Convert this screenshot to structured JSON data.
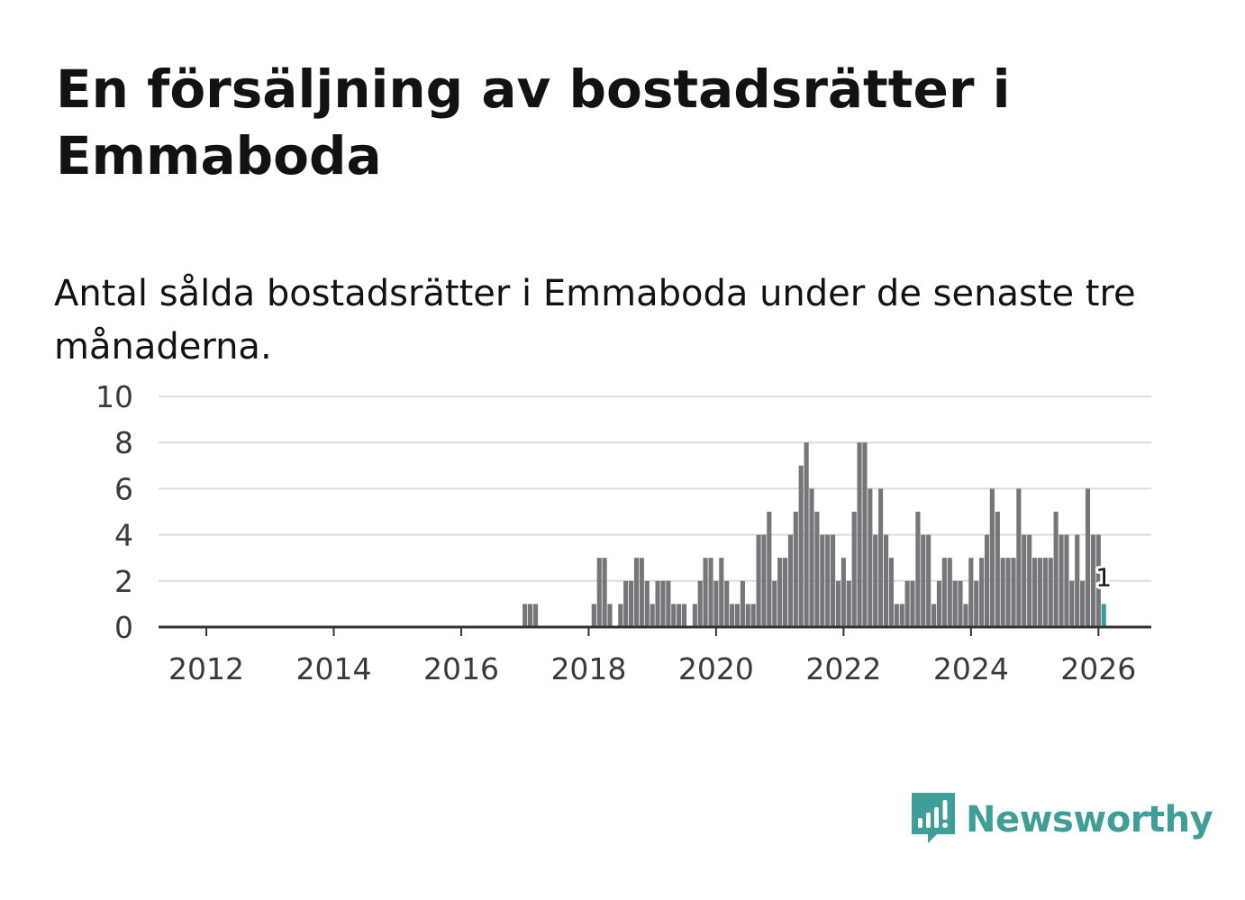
{
  "header": {
    "title": "En försäljning av bostadsrätter i Emmaboda",
    "subtitle": "Antal sålda bostadsrätter i Emmaboda under de senaste tre månaderna."
  },
  "branding": {
    "name": "Newsworthy",
    "icon": "newsworthy-logo-icon"
  },
  "colors": {
    "bar": "#75757a",
    "highlight": "#3a9c96",
    "grid": "#dcdcdc",
    "axis": "#333333",
    "brand": "#3f9e97"
  },
  "chart_data": {
    "type": "bar",
    "title": "En försäljning av bostadsrätter i Emmaboda",
    "subtitle": "Antal sålda bostadsrätter i Emmaboda under de senaste tre månaderna.",
    "xlabel": "",
    "ylabel": "",
    "x_range": [
      2011.25,
      2026.83
    ],
    "ylim": [
      0,
      10
    ],
    "y_ticks": [
      0,
      2,
      4,
      6,
      8,
      10
    ],
    "x_ticks": [
      2012,
      2014,
      2016,
      2018,
      2020,
      2022,
      2024,
      2026
    ],
    "grid": true,
    "bar_width_years": 0.0725,
    "series": [
      {
        "name": "Sålda bostadsrätter",
        "x": [
          2017.0,
          2017.083,
          2017.167,
          2018.083,
          2018.167,
          2018.25,
          2018.333,
          2018.5,
          2018.583,
          2018.667,
          2018.75,
          2018.833,
          2018.917,
          2019.0,
          2019.083,
          2019.167,
          2019.25,
          2019.333,
          2019.417,
          2019.5,
          2019.667,
          2019.75,
          2019.833,
          2019.917,
          2020.0,
          2020.083,
          2020.167,
          2020.25,
          2020.333,
          2020.417,
          2020.5,
          2020.583,
          2020.667,
          2020.75,
          2020.833,
          2020.917,
          2021.0,
          2021.083,
          2021.167,
          2021.25,
          2021.333,
          2021.417,
          2021.5,
          2021.583,
          2021.667,
          2021.75,
          2021.833,
          2021.917,
          2022.0,
          2022.083,
          2022.167,
          2022.25,
          2022.333,
          2022.417,
          2022.5,
          2022.583,
          2022.667,
          2022.75,
          2022.833,
          2022.917,
          2023.0,
          2023.083,
          2023.167,
          2023.25,
          2023.333,
          2023.417,
          2023.5,
          2023.583,
          2023.667,
          2023.75,
          2023.833,
          2023.917,
          2024.0,
          2024.083,
          2024.167,
          2024.25,
          2024.333,
          2024.417,
          2024.5,
          2024.583,
          2024.667,
          2024.75,
          2024.833,
          2024.917,
          2025.0,
          2025.083,
          2025.167,
          2025.25,
          2025.333,
          2025.417,
          2025.5,
          2025.583,
          2025.667,
          2025.75,
          2025.833,
          2025.917,
          2026.0
        ],
        "values": [
          1,
          1,
          1,
          1,
          3,
          3,
          1,
          1,
          2,
          2,
          3,
          3,
          2,
          1,
          2,
          2,
          2,
          1,
          1,
          1,
          1,
          2,
          3,
          3,
          2,
          3,
          2,
          1,
          1,
          2,
          1,
          1,
          4,
          4,
          5,
          2,
          3,
          3,
          4,
          5,
          7,
          8,
          6,
          5,
          4,
          4,
          4,
          2,
          3,
          2,
          5,
          8,
          8,
          6,
          4,
          6,
          4,
          3,
          1,
          1,
          2,
          2,
          5,
          4,
          4,
          1,
          2,
          3,
          3,
          2,
          2,
          1,
          3,
          2,
          3,
          4,
          6,
          5,
          3,
          3,
          3,
          6,
          4,
          4,
          3,
          3,
          3,
          3,
          5,
          4,
          4,
          2,
          4,
          2,
          6,
          4,
          4
        ]
      },
      {
        "name": "Senaste tre månaderna",
        "x": [
          2026.083
        ],
        "values": [
          1
        ]
      }
    ],
    "annotations": [
      {
        "x": 2026.083,
        "value": 1,
        "text": "1"
      }
    ]
  }
}
